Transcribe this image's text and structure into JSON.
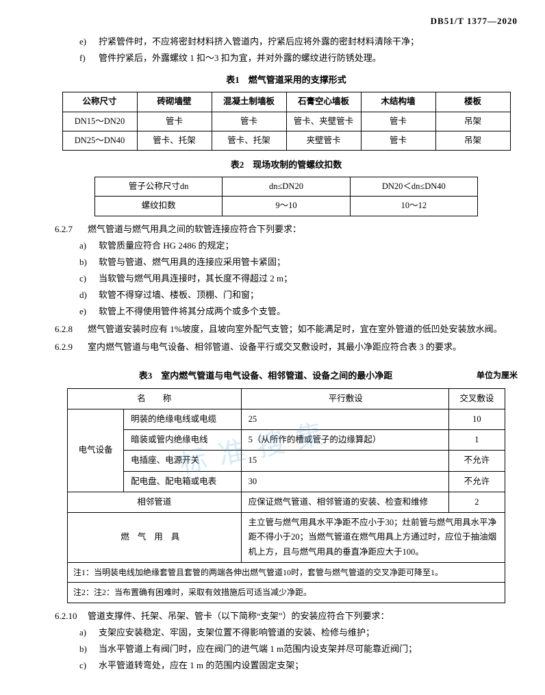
{
  "doc_id": "DB51/T 1377—2020",
  "top_items": [
    {
      "label": "e)",
      "text": "拧紧管件时，不应将密封材料挤入管道内，拧紧后应将外露的密封材料清除干净；"
    },
    {
      "label": "f)",
      "text": "管件拧紧后，外露螺纹 1 扣～3 扣为宜，并对外露的螺纹进行防锈处理。"
    }
  ],
  "table1": {
    "caption": "表1　燃气管道采用的支撑形式",
    "headers": [
      "公称尺寸",
      "砖砌墙壁",
      "混凝土制墙板",
      "石膏空心墙板",
      "木结构墙",
      "楼板"
    ],
    "rows": [
      [
        "DN15～DN20",
        "管卡",
        "管卡",
        "管卡、夹壁管卡",
        "管卡",
        "吊架"
      ],
      [
        "DN25～DN40",
        "管卡、托架",
        "管卡、托架",
        "夹壁管卡",
        "管卡",
        "吊架"
      ]
    ]
  },
  "table2": {
    "caption": "表2　现场攻制的管螺纹扣数",
    "rows": [
      [
        "管子公称尺寸dn",
        "dn≤DN20",
        "DN20＜dn≤DN40"
      ],
      [
        "螺纹扣数",
        "9～10",
        "10～12"
      ]
    ]
  },
  "clause627": {
    "num": "6.2.7",
    "lead": "燃气管道与燃气用具之间的软管连接应符合下列要求：",
    "items": [
      {
        "label": "a)",
        "text": "软管质量应符合 HG 2486 的规定；"
      },
      {
        "label": "b)",
        "text": "软管与管道、燃气用具的连接应采用管卡紧固；"
      },
      {
        "label": "c)",
        "text": "当软管与燃气用具连接时，其长度不得超过 2 m；"
      },
      {
        "label": "d)",
        "text": "软管不得穿过墙、楼板、顶棚、门和窗；"
      },
      {
        "label": "e)",
        "text": "软管上不得使用管件将其分成两个或多个支管。"
      }
    ]
  },
  "clause628": {
    "num": "6.2.8",
    "text": "燃气管道安装时应有 1%坡度，且坡向室外配气支管；如不能满足时，宜在室外管道的低凹处安装放水阀。"
  },
  "clause629": {
    "num": "6.2.9",
    "text": "室内燃气管道与电气设备、相邻管道、设备平行或交叉敷设时，其最小净距应符合表 3 的要求。"
  },
  "table3": {
    "caption": "表3　室内燃气管道与电气设备、相邻管道、设备之间的最小净距",
    "unit": "单位为厘米",
    "head": [
      "名　　称",
      "平行敷设",
      "交叉敷设"
    ],
    "elec_label": "电气设备",
    "elec": [
      [
        "明装的绝缘电线或电缆",
        "25",
        "10"
      ],
      [
        "暗装或管内绝缘电线",
        "5（从所作的槽或管子的边缘算起）",
        "1"
      ],
      [
        "电插座、电源开关",
        "15",
        "不允许"
      ],
      [
        "配电盘、配电箱或电表",
        "30",
        "不允许"
      ]
    ],
    "pipe": [
      "相邻管道",
      "应保证燃气管道、相邻管道的安装、检查和维修",
      "2"
    ],
    "appliance": [
      "燃气用具",
      "主立管与燃气用具水平净距不应小于30；灶前管与燃气用具水平净距不得小于20；当燃气管道在燃气用具上方通过时，应位于抽油烟机上方，且与燃气用具的垂直净距应大于100。"
    ],
    "notes": [
      "注1：当明装电线加绝缘套管且套管的两端各伸出燃气管道10时，套管与燃气管道的交叉净距可降至1。",
      "注2：注2：当布置确有困难时，采取有效措施后可适当减少净距。"
    ]
  },
  "clause6210": {
    "num": "6.2.10",
    "lead": "管道支撑件、托架、吊架、管卡（以下简称“支架”）的安装应符合下列要求：",
    "items": [
      {
        "label": "a)",
        "text": "支架应安装稳定、牢固，支架位置不得影响管道的安装、检修与维护；"
      },
      {
        "label": "b)",
        "text": "当水平管道上有阀门时，应在阀门的进气端 1 m范围内设支架并尽可能靠近阀门；"
      },
      {
        "label": "c)",
        "text": "水平管道转弯处，应在 1 m 的范围内设置固定支架；"
      }
    ]
  },
  "watermark": "标准搜集"
}
